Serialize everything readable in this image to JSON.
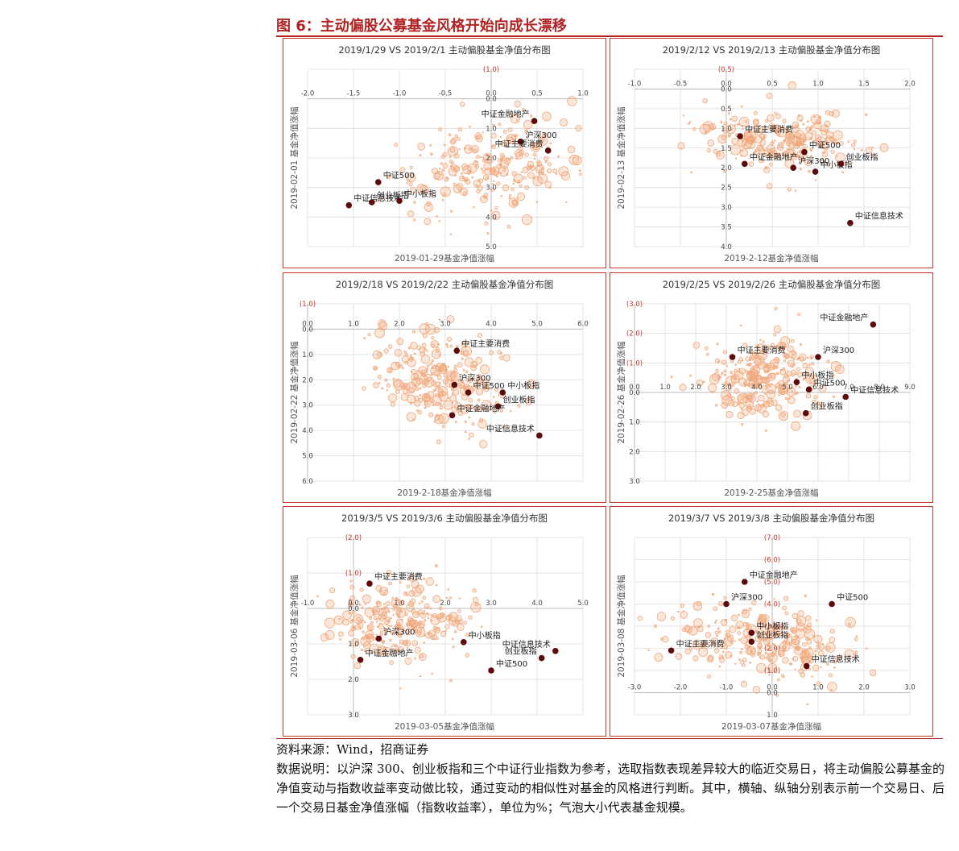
{
  "figure": {
    "title": "图 6：主动偏股公募基金风格开始向成长漂移",
    "source": "资料来源：Wind，招商证券",
    "note": "数据说明：以沪深 300、创业板指和三个中证行业指数为参考，选取指数表现差异较大的临近交易日，将主动偏股公募基金的净值变动与指数收益率变动做比较，通过变动的相似性对基金的风格进行判断。其中，横轴、纵轴分别表示前一个交易日、后一个交易日基金净值涨幅（指数收益率），单位为%；气泡大小代表基金规模。"
  },
  "colors": {
    "border": "#c0392b",
    "bubble": "#f0a77a",
    "index_point": "#5c0a0a",
    "grid": "#dcdcdc",
    "axis_text": "#444444",
    "negative_text": "#c0392b"
  },
  "chart_data": [
    {
      "type": "scatter",
      "title": "2019/1/29 VS 2019/2/1 主动偏股基金净值分布图",
      "xlabel": "2019-01-29基金净值涨幅",
      "ylabel": "2019-02-01 基金净值涨幅",
      "xlim": [
        -2.0,
        1.0
      ],
      "ylim": [
        -1.0,
        5.0
      ],
      "xticks": [
        -2.0,
        -1.5,
        -1.0,
        -0.5,
        0.0,
        0.5,
        1.0
      ],
      "yticks": [
        -1.0,
        0.0,
        1.0,
        2.0,
        3.0,
        4.0,
        5.0
      ],
      "tick_labels_x": [
        "-2.0",
        "-1.5",
        "-1.0",
        "-0.5",
        "0.0",
        "0.5",
        "1.0"
      ],
      "tick_labels_y": [
        "(1.0)",
        "0.0",
        "1.0",
        "2.0",
        "3.0",
        "4.0",
        "5.0"
      ],
      "grid": true,
      "y_inverted": true,
      "cloud": {
        "cx": 0.0,
        "cy": 2.2,
        "sx": 0.5,
        "sy": 0.8,
        "slope": -1.0,
        "n": 260
      },
      "points": [
        {
          "label": "中证金融地产",
          "x": 0.47,
          "y": 0.75
        },
        {
          "label": "沪深300",
          "x": 0.32,
          "y": 1.45
        },
        {
          "label": "中证主要消费",
          "x": 0.62,
          "y": 1.75
        },
        {
          "label": "中证500",
          "x": -1.23,
          "y": 2.82
        },
        {
          "label": "中证信息技术",
          "x": -1.55,
          "y": 3.6
        },
        {
          "label": "中小板指",
          "x": -1.0,
          "y": 3.45
        },
        {
          "label": "创业板指",
          "x": -1.3,
          "y": 3.5
        }
      ]
    },
    {
      "type": "scatter",
      "title": "2019/2/12 VS 2019/2/13 主动偏股基金净值分布图",
      "xlabel": "2019-2-12基金净值涨幅",
      "ylabel": "2019-02-13 基金净值涨幅",
      "xlim": [
        -1.0,
        2.0
      ],
      "ylim": [
        -0.5,
        4.0
      ],
      "xticks": [
        -1.0,
        -0.5,
        0.0,
        0.5,
        1.0,
        1.5,
        2.0
      ],
      "yticks": [
        -0.5,
        0.0,
        0.5,
        1.0,
        1.5,
        2.0,
        2.5,
        3.0,
        3.5,
        4.0
      ],
      "tick_labels_x": [
        "-1.0",
        "-0.5",
        "0.0",
        "0.5",
        "1.0",
        "1.5",
        "2.0"
      ],
      "tick_labels_y": [
        "(0.5)",
        "0.0",
        "0.5",
        "1.0",
        "1.5",
        "2.0",
        "2.5",
        "3.0",
        "3.5",
        "4.0"
      ],
      "grid": true,
      "y_inverted": true,
      "cloud": {
        "cx": 0.6,
        "cy": 1.3,
        "sx": 0.4,
        "sy": 0.4,
        "slope": 0.3,
        "n": 260
      },
      "points": [
        {
          "label": "中证主要消费",
          "x": 0.15,
          "y": 1.2
        },
        {
          "label": "中证500",
          "x": 0.85,
          "y": 1.6
        },
        {
          "label": "中证金融地产",
          "x": 0.2,
          "y": 1.9
        },
        {
          "label": "沪深300",
          "x": 0.73,
          "y": 2.0
        },
        {
          "label": "中小板指",
          "x": 0.97,
          "y": 2.1
        },
        {
          "label": "创业板指",
          "x": 1.25,
          "y": 1.9
        },
        {
          "label": "中证信息技术",
          "x": 1.35,
          "y": 3.4
        }
      ]
    },
    {
      "type": "scatter",
      "title": "2019/2/18 VS 2019/2/22 主动偏股基金净值分布图",
      "xlabel": "2019-2-18基金净值涨幅",
      "ylabel": "2019-02-22 基金净值涨幅",
      "xlim": [
        0.0,
        6.0
      ],
      "ylim": [
        -1.0,
        6.0
      ],
      "xticks": [
        0.0,
        1.0,
        2.0,
        3.0,
        4.0,
        5.0,
        6.0
      ],
      "yticks": [
        -1.0,
        0.0,
        1.0,
        2.0,
        3.0,
        4.0,
        5.0,
        6.0
      ],
      "tick_labels_x": [
        "0.0",
        "1.0",
        "2.0",
        "3.0",
        "4.0",
        "5.0",
        "6.0"
      ],
      "tick_labels_y": [
        "(1.0)",
        "0.0",
        "1.0",
        "2.0",
        "3.0",
        "4.0",
        "5.0",
        "6.0"
      ],
      "grid": true,
      "y_inverted": true,
      "cloud": {
        "cx": 2.9,
        "cy": 2.0,
        "sx": 0.7,
        "sy": 0.9,
        "slope": 0.6,
        "n": 280
      },
      "points": [
        {
          "label": "中证主要消费",
          "x": 3.25,
          "y": 0.85
        },
        {
          "label": "沪深300",
          "x": 3.2,
          "y": 2.2
        },
        {
          "label": "中证500",
          "x": 3.5,
          "y": 2.5
        },
        {
          "label": "中小板指",
          "x": 4.25,
          "y": 2.5
        },
        {
          "label": "创业板指",
          "x": 4.15,
          "y": 3.05
        },
        {
          "label": "中证金融地产",
          "x": 3.15,
          "y": 3.4
        },
        {
          "label": "中证信息技术",
          "x": 5.05,
          "y": 4.2
        }
      ]
    },
    {
      "type": "scatter",
      "title": "2019/2/25 VS 2019/2/26 主动偏股基金净值分布图",
      "xlabel": "2019-2-25基金净值涨幅",
      "ylabel": "2019-02-26 基金净值涨幅",
      "xlim": [
        0.0,
        9.0
      ],
      "ylim": [
        -3.0,
        3.0
      ],
      "xticks": [
        0.0,
        1.0,
        2.0,
        3.0,
        4.0,
        5.0,
        6.0,
        7.0,
        8.0,
        9.0
      ],
      "yticks": [
        -3.0,
        -2.0,
        -1.0,
        0.0,
        1.0,
        2.0,
        3.0
      ],
      "tick_labels_x": [
        "0.0",
        "1.0",
        "2.0",
        "3.0",
        "4.0",
        "5.0",
        "6.0",
        "7.0",
        "8.0",
        "9.0"
      ],
      "tick_labels_y": [
        "(3.0)",
        "(2.0)",
        "(1.0)",
        "0.0",
        "1.0",
        "2.0",
        "3.0"
      ],
      "grid": true,
      "y_inverted": true,
      "cloud": {
        "cx": 4.2,
        "cy": -0.5,
        "sx": 1.0,
        "sy": 0.7,
        "slope": 0.0,
        "n": 280
      },
      "points": [
        {
          "label": "中证金融地产",
          "x": 7.8,
          "y": -2.3
        },
        {
          "label": "中证主要消费",
          "x": 3.2,
          "y": -1.2
        },
        {
          "label": "沪深300",
          "x": 6.0,
          "y": -1.2
        },
        {
          "label": "中小板指",
          "x": 5.3,
          "y": -0.35
        },
        {
          "label": "中证500",
          "x": 5.7,
          "y": -0.1
        },
        {
          "label": "中证信息技术",
          "x": 6.9,
          "y": 0.15
        },
        {
          "label": "创业板指",
          "x": 5.6,
          "y": 0.7
        }
      ]
    },
    {
      "type": "scatter",
      "title": "2019/3/5 VS 2019/3/6 主动偏股基金净值分布图",
      "xlabel": "2019-03-05基金净值涨幅",
      "ylabel": "2019-03-06 基金净值涨幅",
      "xlim": [
        -1.0,
        5.0
      ],
      "ylim": [
        -2.0,
        3.0
      ],
      "xticks": [
        -1.0,
        0.0,
        1.0,
        2.0,
        3.0,
        4.0,
        5.0
      ],
      "yticks": [
        -2.0,
        -1.0,
        0.0,
        1.0,
        2.0,
        3.0
      ],
      "tick_labels_x": [
        "-1.0",
        "0.0",
        "1.0",
        "2.0",
        "3.0",
        "4.0",
        "5.0"
      ],
      "tick_labels_y": [
        "(2.0)",
        "(1.0)",
        "0.0",
        "1.0",
        "2.0",
        "3.0"
      ],
      "grid": true,
      "y_inverted": true,
      "cloud": {
        "cx": 1.0,
        "cy": 0.3,
        "sx": 0.8,
        "sy": 0.55,
        "slope": 0.15,
        "n": 280
      },
      "points": [
        {
          "label": "中证主要消费",
          "x": 0.35,
          "y": -0.7
        },
        {
          "label": "沪深300",
          "x": 0.55,
          "y": 0.85
        },
        {
          "label": "中小板指",
          "x": 2.4,
          "y": 0.95
        },
        {
          "label": "中证金融地产",
          "x": 0.15,
          "y": 1.45
        },
        {
          "label": "中证信息技术",
          "x": 4.4,
          "y": 1.2
        },
        {
          "label": "创业板指",
          "x": 4.1,
          "y": 1.4
        },
        {
          "label": "中证500",
          "x": 3.0,
          "y": 1.75
        }
      ]
    },
    {
      "type": "scatter",
      "title": "2019/3/7 VS 2019/3/8 主动偏股基金净值分布图",
      "xlabel": "2019-03-07基金净值涨幅",
      "ylabel": "2019-03-08 基金净值涨幅",
      "xlim": [
        -3.0,
        3.0
      ],
      "ylim": [
        -7.0,
        1.0
      ],
      "xticks": [
        -3.0,
        -2.0,
        -1.0,
        0.0,
        1.0,
        2.0,
        3.0
      ],
      "yticks": [
        -7.0,
        -6.0,
        -5.0,
        -4.0,
        -3.0,
        -2.0,
        -1.0,
        0.0,
        1.0
      ],
      "tick_labels_x": [
        "-3.0",
        "-2.0",
        "-1.0",
        "0.0",
        "1.0",
        "2.0",
        "3.0"
      ],
      "tick_labels_y": [
        "(7.0)",
        "(6.0)",
        "(5.0)",
        "(4.0)",
        "(3.0)",
        "(2.0)",
        "(1.0)",
        "0.0",
        "1.0"
      ],
      "grid": true,
      "y_inverted": true,
      "cloud": {
        "cx": -0.3,
        "cy": -2.3,
        "sx": 0.9,
        "sy": 0.8,
        "slope": 0.3,
        "n": 280
      },
      "points": [
        {
          "label": "中证金融地产",
          "x": -0.6,
          "y": -5.0
        },
        {
          "label": "沪深300",
          "x": -1.0,
          "y": -4.0
        },
        {
          "label": "中证500",
          "x": 1.3,
          "y": -4.0
        },
        {
          "label": "中小板指",
          "x": -0.45,
          "y": -2.7
        },
        {
          "label": "中证主要消费",
          "x": -2.2,
          "y": -1.9
        },
        {
          "label": "创业板指",
          "x": -0.45,
          "y": -2.3
        },
        {
          "label": "中证信息技术",
          "x": 0.75,
          "y": -1.2
        }
      ]
    }
  ]
}
